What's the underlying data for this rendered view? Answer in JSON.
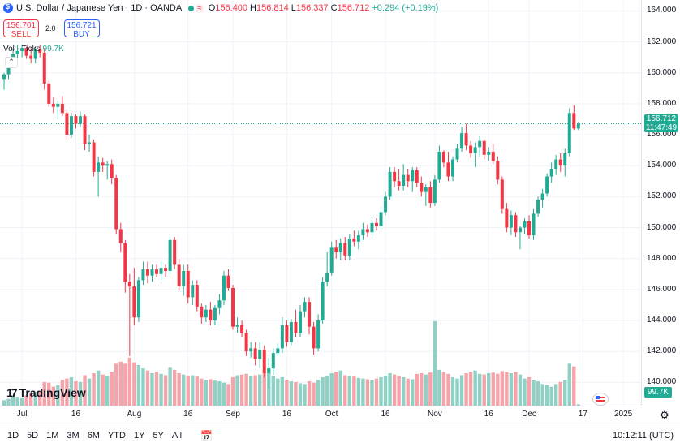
{
  "legend": {
    "title": "U.S. Dollar / Japanese Yen · 1D · OANDA",
    "status_icon": "≈",
    "open_label": "O",
    "open_value": "156.400",
    "high_label": "H",
    "high_value": "156.814",
    "low_label": "L",
    "low_value": "156.337",
    "close_label": "C",
    "close_value": "156.712",
    "change": "+0.294 (+0.19%)"
  },
  "trade": {
    "sell_price": "156.701",
    "sell_label": "SELL",
    "spread": "2.0",
    "buy_price": "156.721",
    "buy_label": "BUY"
  },
  "volume_legend": {
    "label": "Vol · Ticks",
    "value": "99.7K"
  },
  "collapse_icon": "chevron-up-icon",
  "logo": {
    "mark": "17",
    "text": "TradingView"
  },
  "price_axis": {
    "ticks": [
      "164.000",
      "162.000",
      "160.000",
      "158.000",
      "156.000",
      "154.000",
      "152.000",
      "150.000",
      "148.000",
      "146.000",
      "144.000",
      "142.000",
      "140.000"
    ],
    "last_price": "156.712",
    "countdown": "11:47:49",
    "volume_badge": "99.7K"
  },
  "time_axis": {
    "ticks": [
      "Jul",
      "16",
      "Aug",
      "16",
      "Sep",
      "16",
      "Oct",
      "16",
      "Nov",
      "16",
      "Dec",
      "17",
      "2025"
    ]
  },
  "toolbar": {
    "timeframes": [
      "1D",
      "5D",
      "1M",
      "3M",
      "6M",
      "YTD",
      "1Y",
      "5Y",
      "All"
    ],
    "clock": "10:12:11 (UTC)"
  },
  "colors": {
    "up": "#22ab94",
    "down": "#f23645",
    "up_vol": "#8fd1c5",
    "down_vol": "#f6a3aa",
    "accent": "#2962ff"
  },
  "chart_data": {
    "type": "candlestick",
    "title": "U.S. Dollar / Japanese Yen · 1D · OANDA",
    "ylim": [
      138.5,
      164.7
    ],
    "volume_scale_max": 150000,
    "last_price": 156.712,
    "candles": [
      {
        "o": 159.6,
        "h": 160.0,
        "l": 158.9,
        "c": 159.9,
        "v": 8000
      },
      {
        "o": 159.9,
        "h": 160.8,
        "l": 159.6,
        "c": 160.6,
        "v": 10000
      },
      {
        "o": 160.6,
        "h": 161.5,
        "l": 160.3,
        "c": 161.2,
        "v": 14000
      },
      {
        "o": 161.2,
        "h": 161.8,
        "l": 160.9,
        "c": 161.4,
        "v": 13000
      },
      {
        "o": 161.4,
        "h": 161.8,
        "l": 161.0,
        "c": 161.6,
        "v": 12000
      },
      {
        "o": 161.6,
        "h": 161.7,
        "l": 160.9,
        "c": 161.1,
        "v": 15000
      },
      {
        "o": 161.1,
        "h": 161.6,
        "l": 160.6,
        "c": 160.9,
        "v": 18000
      },
      {
        "o": 160.9,
        "h": 161.7,
        "l": 160.6,
        "c": 161.5,
        "v": 20000
      },
      {
        "o": 161.5,
        "h": 161.8,
        "l": 161.0,
        "c": 161.3,
        "v": 22000
      },
      {
        "o": 161.3,
        "h": 161.6,
        "l": 158.9,
        "c": 159.3,
        "v": 35000
      },
      {
        "o": 159.3,
        "h": 159.5,
        "l": 157.8,
        "c": 158.0,
        "v": 34000
      },
      {
        "o": 158.0,
        "h": 158.4,
        "l": 157.4,
        "c": 157.8,
        "v": 28000
      },
      {
        "o": 157.8,
        "h": 158.2,
        "l": 157.0,
        "c": 158.0,
        "v": 30000
      },
      {
        "o": 158.0,
        "h": 158.5,
        "l": 157.2,
        "c": 157.4,
        "v": 38000
      },
      {
        "o": 157.4,
        "h": 157.6,
        "l": 155.7,
        "c": 156.0,
        "v": 40000
      },
      {
        "o": 156.0,
        "h": 157.4,
        "l": 155.8,
        "c": 157.2,
        "v": 42000
      },
      {
        "o": 157.2,
        "h": 157.3,
        "l": 156.4,
        "c": 156.7,
        "v": 36000
      },
      {
        "o": 156.7,
        "h": 157.5,
        "l": 156.5,
        "c": 157.2,
        "v": 35000
      },
      {
        "o": 157.2,
        "h": 157.3,
        "l": 155.0,
        "c": 155.4,
        "v": 45000
      },
      {
        "o": 155.4,
        "h": 156.0,
        "l": 154.9,
        "c": 155.5,
        "v": 40000
      },
      {
        "o": 155.5,
        "h": 155.7,
        "l": 153.3,
        "c": 153.6,
        "v": 48000
      },
      {
        "o": 153.6,
        "h": 154.6,
        "l": 152.0,
        "c": 154.2,
        "v": 52000
      },
      {
        "o": 154.2,
        "h": 154.5,
        "l": 153.6,
        "c": 154.0,
        "v": 46000
      },
      {
        "o": 154.0,
        "h": 154.3,
        "l": 153.1,
        "c": 154.1,
        "v": 44000
      },
      {
        "o": 154.1,
        "h": 154.4,
        "l": 152.8,
        "c": 153.2,
        "v": 50000
      },
      {
        "o": 153.2,
        "h": 153.4,
        "l": 149.6,
        "c": 149.9,
        "v": 62000
      },
      {
        "o": 149.9,
        "h": 150.3,
        "l": 148.4,
        "c": 149.0,
        "v": 65000
      },
      {
        "o": 149.0,
        "h": 149.2,
        "l": 145.8,
        "c": 146.5,
        "v": 62000
      },
      {
        "o": 146.5,
        "h": 147.0,
        "l": 141.7,
        "c": 146.2,
        "v": 71000
      },
      {
        "o": 146.2,
        "h": 147.4,
        "l": 143.7,
        "c": 144.2,
        "v": 64000
      },
      {
        "o": 144.2,
        "h": 146.8,
        "l": 143.9,
        "c": 146.6,
        "v": 60000
      },
      {
        "o": 146.6,
        "h": 147.8,
        "l": 146.3,
        "c": 147.3,
        "v": 55000
      },
      {
        "o": 147.3,
        "h": 147.8,
        "l": 146.4,
        "c": 146.9,
        "v": 52000
      },
      {
        "o": 146.9,
        "h": 147.6,
        "l": 146.5,
        "c": 147.3,
        "v": 48000
      },
      {
        "o": 147.3,
        "h": 147.6,
        "l": 146.8,
        "c": 147.0,
        "v": 50000
      },
      {
        "o": 147.0,
        "h": 147.8,
        "l": 146.6,
        "c": 147.4,
        "v": 47000
      },
      {
        "o": 147.4,
        "h": 147.6,
        "l": 146.8,
        "c": 147.2,
        "v": 45000
      },
      {
        "o": 147.2,
        "h": 149.4,
        "l": 147.0,
        "c": 149.2,
        "v": 56000
      },
      {
        "o": 149.2,
        "h": 149.4,
        "l": 147.3,
        "c": 147.6,
        "v": 53000
      },
      {
        "o": 147.6,
        "h": 148.0,
        "l": 145.9,
        "c": 146.2,
        "v": 48000
      },
      {
        "o": 146.2,
        "h": 147.6,
        "l": 145.6,
        "c": 147.2,
        "v": 46000
      },
      {
        "o": 147.2,
        "h": 147.6,
        "l": 145.1,
        "c": 145.5,
        "v": 44000
      },
      {
        "o": 145.5,
        "h": 146.6,
        "l": 145.0,
        "c": 146.3,
        "v": 45000
      },
      {
        "o": 146.3,
        "h": 146.6,
        "l": 144.6,
        "c": 144.9,
        "v": 43000
      },
      {
        "o": 144.9,
        "h": 145.1,
        "l": 143.8,
        "c": 144.2,
        "v": 40000
      },
      {
        "o": 144.2,
        "h": 145.0,
        "l": 143.9,
        "c": 144.7,
        "v": 38000
      },
      {
        "o": 144.7,
        "h": 145.2,
        "l": 143.7,
        "c": 144.0,
        "v": 39000
      },
      {
        "o": 144.0,
        "h": 145.0,
        "l": 143.7,
        "c": 144.8,
        "v": 37000
      },
      {
        "o": 144.8,
        "h": 145.7,
        "l": 144.4,
        "c": 145.3,
        "v": 36000
      },
      {
        "o": 145.3,
        "h": 147.2,
        "l": 145.0,
        "c": 146.9,
        "v": 34000
      },
      {
        "o": 146.9,
        "h": 147.3,
        "l": 145.9,
        "c": 146.1,
        "v": 32000
      },
      {
        "o": 146.1,
        "h": 146.3,
        "l": 143.4,
        "c": 143.6,
        "v": 42000
      },
      {
        "o": 143.6,
        "h": 144.2,
        "l": 143.2,
        "c": 143.7,
        "v": 45000
      },
      {
        "o": 143.7,
        "h": 144.0,
        "l": 142.9,
        "c": 143.2,
        "v": 46000
      },
      {
        "o": 143.2,
        "h": 143.4,
        "l": 141.7,
        "c": 142.0,
        "v": 47000
      },
      {
        "o": 142.0,
        "h": 142.6,
        "l": 141.6,
        "c": 142.2,
        "v": 44000
      },
      {
        "o": 142.2,
        "h": 142.6,
        "l": 141.1,
        "c": 141.5,
        "v": 45000
      },
      {
        "o": 141.5,
        "h": 142.6,
        "l": 140.9,
        "c": 142.1,
        "v": 46000
      },
      {
        "o": 142.1,
        "h": 142.4,
        "l": 140.3,
        "c": 140.6,
        "v": 50000
      },
      {
        "o": 140.6,
        "h": 141.6,
        "l": 139.6,
        "c": 140.9,
        "v": 55000
      },
      {
        "o": 140.9,
        "h": 142.2,
        "l": 140.5,
        "c": 141.9,
        "v": 44000
      },
      {
        "o": 141.9,
        "h": 142.5,
        "l": 141.7,
        "c": 142.2,
        "v": 40000
      },
      {
        "o": 142.2,
        "h": 144.2,
        "l": 141.9,
        "c": 143.7,
        "v": 42000
      },
      {
        "o": 143.7,
        "h": 144.0,
        "l": 142.3,
        "c": 142.6,
        "v": 38000
      },
      {
        "o": 142.6,
        "h": 144.1,
        "l": 142.4,
        "c": 143.9,
        "v": 36000
      },
      {
        "o": 143.9,
        "h": 144.7,
        "l": 142.9,
        "c": 143.2,
        "v": 35000
      },
      {
        "o": 143.2,
        "h": 145.0,
        "l": 142.9,
        "c": 144.6,
        "v": 33000
      },
      {
        "o": 144.6,
        "h": 145.5,
        "l": 144.2,
        "c": 145.2,
        "v": 32000
      },
      {
        "o": 145.2,
        "h": 145.5,
        "l": 143.1,
        "c": 143.6,
        "v": 36000
      },
      {
        "o": 143.6,
        "h": 143.9,
        "l": 141.8,
        "c": 142.2,
        "v": 34000
      },
      {
        "o": 142.2,
        "h": 144.4,
        "l": 142.0,
        "c": 144.0,
        "v": 38000
      },
      {
        "o": 144.0,
        "h": 146.8,
        "l": 143.8,
        "c": 146.5,
        "v": 42000
      },
      {
        "o": 146.5,
        "h": 148.4,
        "l": 146.2,
        "c": 147.1,
        "v": 44000
      },
      {
        "o": 147.1,
        "h": 149.1,
        "l": 146.9,
        "c": 148.7,
        "v": 48000
      },
      {
        "o": 148.7,
        "h": 149.2,
        "l": 148.0,
        "c": 148.4,
        "v": 50000
      },
      {
        "o": 148.4,
        "h": 149.3,
        "l": 147.9,
        "c": 149.0,
        "v": 52000
      },
      {
        "o": 149.0,
        "h": 149.4,
        "l": 147.9,
        "c": 148.2,
        "v": 45000
      },
      {
        "o": 148.2,
        "h": 149.6,
        "l": 147.9,
        "c": 149.3,
        "v": 44000
      },
      {
        "o": 149.3,
        "h": 149.8,
        "l": 148.8,
        "c": 149.1,
        "v": 43000
      },
      {
        "o": 149.1,
        "h": 149.8,
        "l": 148.6,
        "c": 149.5,
        "v": 41000
      },
      {
        "o": 149.5,
        "h": 150.3,
        "l": 149.2,
        "c": 149.9,
        "v": 40000
      },
      {
        "o": 149.9,
        "h": 150.2,
        "l": 149.4,
        "c": 149.7,
        "v": 39000
      },
      {
        "o": 149.7,
        "h": 150.5,
        "l": 149.5,
        "c": 150.3,
        "v": 38000
      },
      {
        "o": 150.3,
        "h": 150.6,
        "l": 149.8,
        "c": 150.1,
        "v": 40000
      },
      {
        "o": 150.1,
        "h": 151.3,
        "l": 149.9,
        "c": 151.0,
        "v": 42000
      },
      {
        "o": 151.0,
        "h": 152.3,
        "l": 150.8,
        "c": 152.0,
        "v": 44000
      },
      {
        "o": 152.0,
        "h": 153.9,
        "l": 151.8,
        "c": 153.6,
        "v": 48000
      },
      {
        "o": 153.6,
        "h": 153.9,
        "l": 152.6,
        "c": 153.0,
        "v": 46000
      },
      {
        "o": 153.0,
        "h": 153.8,
        "l": 152.4,
        "c": 152.7,
        "v": 44000
      },
      {
        "o": 152.7,
        "h": 154.1,
        "l": 152.4,
        "c": 153.4,
        "v": 42000
      },
      {
        "o": 153.4,
        "h": 153.8,
        "l": 152.6,
        "c": 153.0,
        "v": 40000
      },
      {
        "o": 153.0,
        "h": 153.9,
        "l": 152.3,
        "c": 153.7,
        "v": 39000
      },
      {
        "o": 153.7,
        "h": 153.9,
        "l": 152.6,
        "c": 152.9,
        "v": 47000
      },
      {
        "o": 152.9,
        "h": 153.3,
        "l": 152.0,
        "c": 152.3,
        "v": 48000
      },
      {
        "o": 152.3,
        "h": 152.8,
        "l": 151.4,
        "c": 152.6,
        "v": 46000
      },
      {
        "o": 152.6,
        "h": 153.0,
        "l": 151.3,
        "c": 151.6,
        "v": 49000
      },
      {
        "o": 151.6,
        "h": 153.4,
        "l": 151.4,
        "c": 153.1,
        "v": 125000
      },
      {
        "o": 153.1,
        "h": 155.3,
        "l": 152.9,
        "c": 154.9,
        "v": 53000
      },
      {
        "o": 154.9,
        "h": 155.0,
        "l": 153.9,
        "c": 154.2,
        "v": 50000
      },
      {
        "o": 154.2,
        "h": 154.9,
        "l": 153.0,
        "c": 153.3,
        "v": 47000
      },
      {
        "o": 153.3,
        "h": 154.6,
        "l": 153.0,
        "c": 154.4,
        "v": 42000
      },
      {
        "o": 154.4,
        "h": 155.4,
        "l": 154.2,
        "c": 155.1,
        "v": 40000
      },
      {
        "o": 155.1,
        "h": 156.5,
        "l": 154.9,
        "c": 156.1,
        "v": 45000
      },
      {
        "o": 156.1,
        "h": 156.7,
        "l": 155.0,
        "c": 155.3,
        "v": 48000
      },
      {
        "o": 155.3,
        "h": 155.6,
        "l": 154.5,
        "c": 154.8,
        "v": 50000
      },
      {
        "o": 154.8,
        "h": 155.5,
        "l": 153.9,
        "c": 155.2,
        "v": 52000
      },
      {
        "o": 155.2,
        "h": 155.9,
        "l": 154.6,
        "c": 155.6,
        "v": 47000
      },
      {
        "o": 155.6,
        "h": 155.7,
        "l": 154.4,
        "c": 154.7,
        "v": 46000
      },
      {
        "o": 154.7,
        "h": 155.2,
        "l": 154.3,
        "c": 154.9,
        "v": 48000
      },
      {
        "o": 154.9,
        "h": 155.4,
        "l": 154.1,
        "c": 154.3,
        "v": 49000
      },
      {
        "o": 154.3,
        "h": 154.6,
        "l": 152.8,
        "c": 153.1,
        "v": 47000
      },
      {
        "o": 153.1,
        "h": 153.3,
        "l": 150.9,
        "c": 151.2,
        "v": 51000
      },
      {
        "o": 151.2,
        "h": 151.6,
        "l": 149.7,
        "c": 150.0,
        "v": 50000
      },
      {
        "o": 150.0,
        "h": 151.1,
        "l": 149.5,
        "c": 150.8,
        "v": 48000
      },
      {
        "o": 150.8,
        "h": 151.0,
        "l": 149.4,
        "c": 149.7,
        "v": 50000
      },
      {
        "o": 149.7,
        "h": 150.1,
        "l": 148.6,
        "c": 150.0,
        "v": 46000
      },
      {
        "o": 150.0,
        "h": 150.6,
        "l": 149.6,
        "c": 150.4,
        "v": 40000
      },
      {
        "o": 150.4,
        "h": 150.8,
        "l": 149.3,
        "c": 149.5,
        "v": 42000
      },
      {
        "o": 149.5,
        "h": 151.2,
        "l": 149.2,
        "c": 150.9,
        "v": 38000
      },
      {
        "o": 150.9,
        "h": 152.0,
        "l": 150.7,
        "c": 151.8,
        "v": 36000
      },
      {
        "o": 151.8,
        "h": 152.5,
        "l": 151.3,
        "c": 152.2,
        "v": 32000
      },
      {
        "o": 152.2,
        "h": 153.5,
        "l": 152.0,
        "c": 153.3,
        "v": 30000
      },
      {
        "o": 153.3,
        "h": 154.2,
        "l": 152.9,
        "c": 153.8,
        "v": 28000
      },
      {
        "o": 153.8,
        "h": 154.7,
        "l": 153.4,
        "c": 154.4,
        "v": 32000
      },
      {
        "o": 154.4,
        "h": 154.8,
        "l": 153.6,
        "c": 154.0,
        "v": 35000
      },
      {
        "o": 154.0,
        "h": 155.1,
        "l": 153.3,
        "c": 154.8,
        "v": 38000
      },
      {
        "o": 154.8,
        "h": 157.7,
        "l": 154.6,
        "c": 157.4,
        "v": 62000
      },
      {
        "o": 157.4,
        "h": 157.9,
        "l": 156.3,
        "c": 156.4,
        "v": 58000
      },
      {
        "o": 156.4,
        "h": 156.8,
        "l": 156.3,
        "c": 156.7,
        "v": 2000
      }
    ]
  }
}
